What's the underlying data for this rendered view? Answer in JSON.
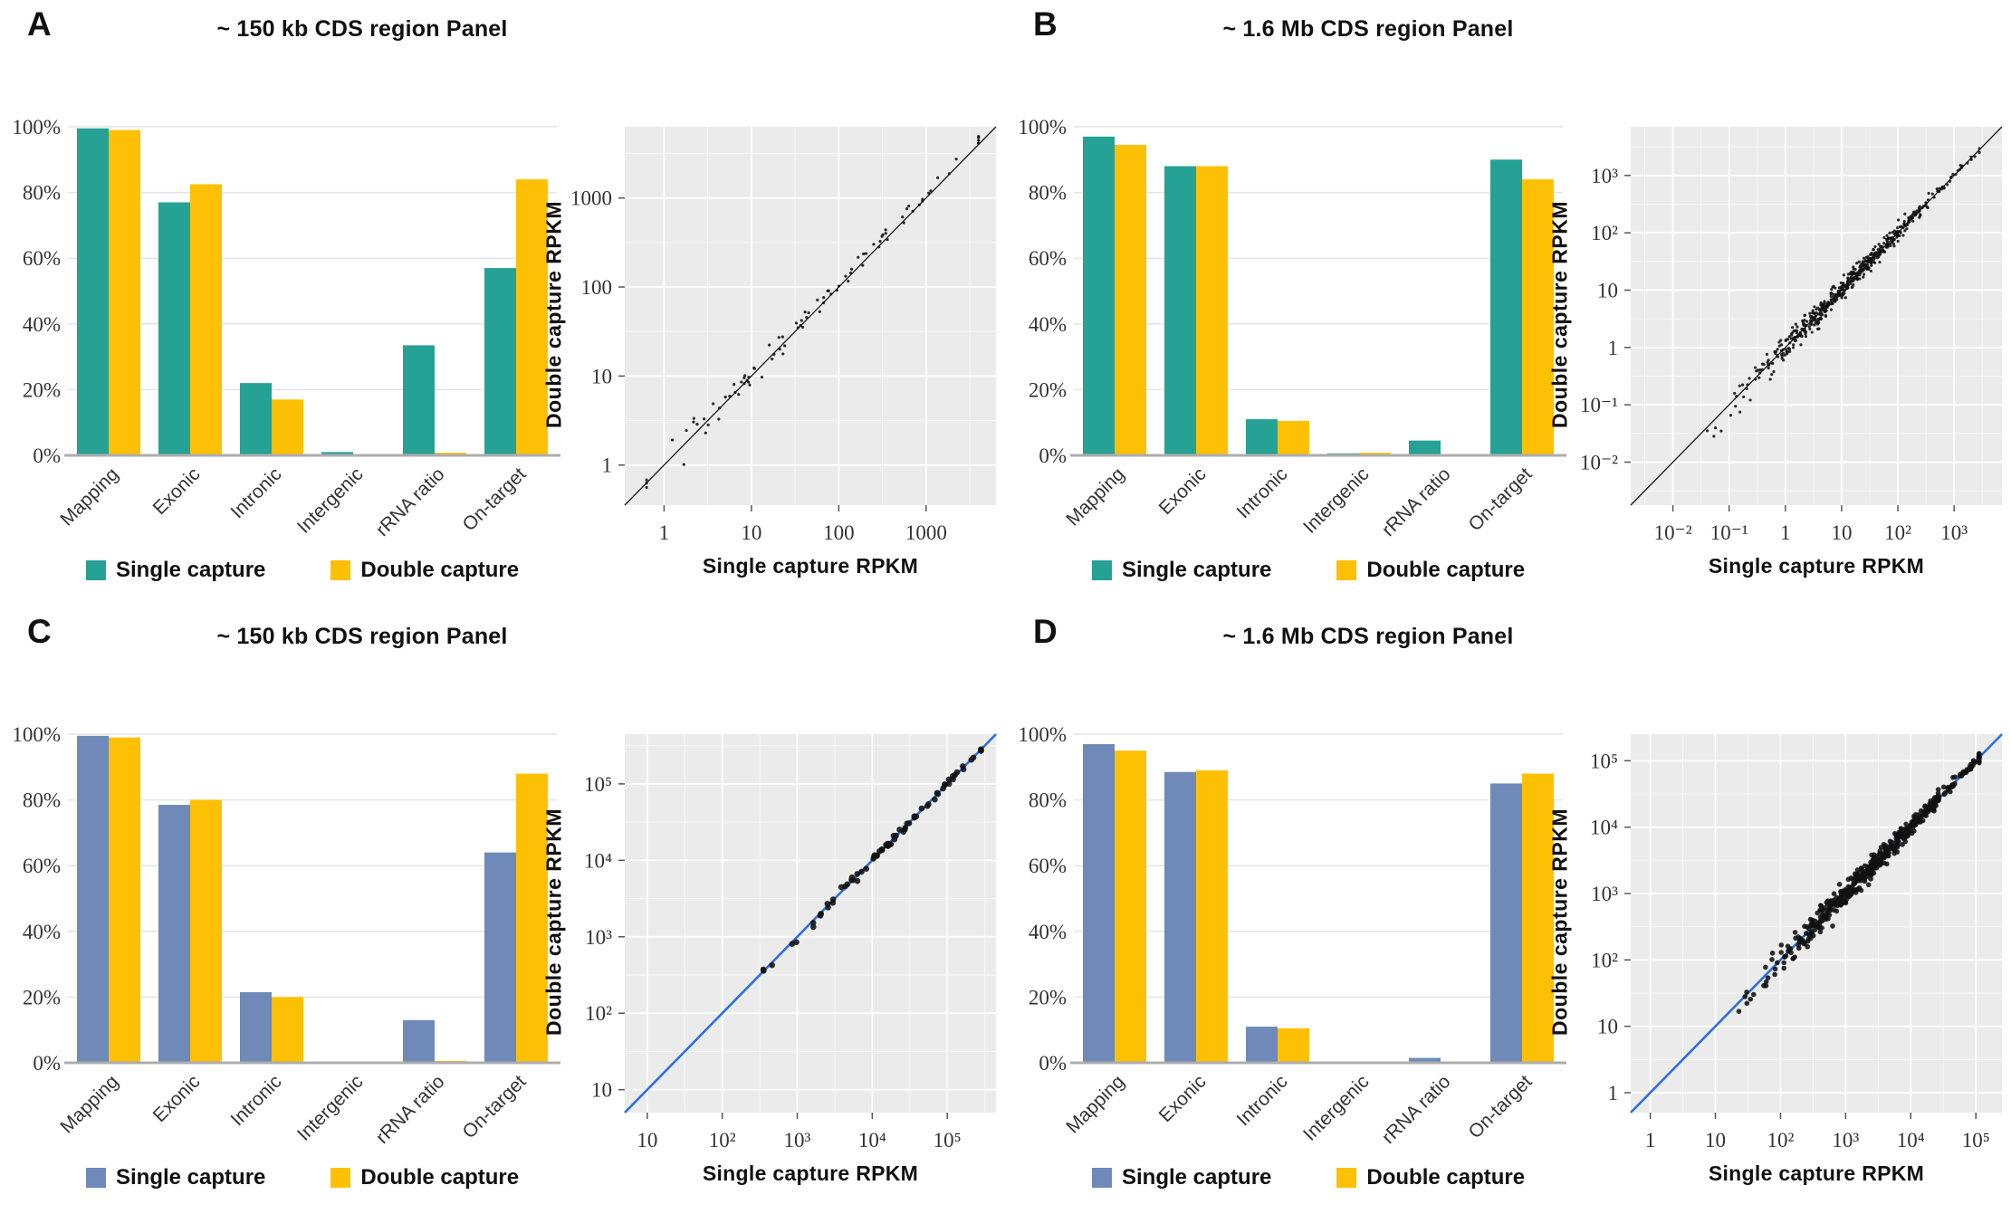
{
  "background": "#ffffff",
  "chart_data": [
    {
      "panel": "A",
      "title": "~ 150 kb CDS region Panel",
      "bar": {
        "type": "bar",
        "categories": [
          "Mapping",
          "Exonic",
          "Intronic",
          "Intergenic",
          "rRNA ratio",
          "On-target"
        ],
        "y_ticks": [
          "100%",
          "80%",
          "60%",
          "40%",
          "20%",
          "0%"
        ],
        "ylim": [
          0,
          100
        ],
        "grid": true,
        "series": [
          {
            "name": "Single capture",
            "color": "#26a196",
            "values": [
              99.5,
              77,
              22,
              1,
              33.5,
              57
            ]
          },
          {
            "name": "Double capture",
            "color": "#fdc005",
            "values": [
              99,
              82.5,
              17,
              0.4,
              0.8,
              84
            ]
          }
        ]
      },
      "scatter": {
        "type": "scatter",
        "xlabel": "Single capture RPKM",
        "ylabel": "Double capture RPKM",
        "x_ticks": [
          "1",
          "10",
          "100",
          "1000"
        ],
        "x_ticks_log": [
          0,
          1,
          2,
          3
        ],
        "y_ticks": [
          "1",
          "10",
          "100",
          "1000"
        ],
        "y_ticks_log": [
          0,
          1,
          2,
          3
        ],
        "axis_range_log": [
          -0.45,
          3.8
        ],
        "grid": true,
        "identity_line": {
          "color": "#1a1a1a",
          "width": 1.3
        },
        "points": {
          "n": 90,
          "seed": 11,
          "mu": 1.7,
          "sigma": 1.05,
          "lo": -0.2,
          "hi": 3.6,
          "sd0": 0.035,
          "sd1": 0.05,
          "bias": 0.05,
          "radius": 1.6,
          "color": "#111111"
        }
      },
      "legend": [
        {
          "label": "Single capture",
          "color": "#26a196"
        },
        {
          "label": "Double capture",
          "color": "#fdc005"
        }
      ]
    },
    {
      "panel": "B",
      "title": "~ 1.6 Mb CDS region Panel",
      "bar": {
        "type": "bar",
        "categories": [
          "Mapping",
          "Exonic",
          "Intronic",
          "Intergenic",
          "rRNA ratio",
          "On-target"
        ],
        "y_ticks": [
          "100%",
          "80%",
          "60%",
          "40%",
          "20%",
          "0%"
        ],
        "ylim": [
          0,
          100
        ],
        "grid": true,
        "series": [
          {
            "name": "Single capture",
            "color": "#26a196",
            "values": [
              97,
              88,
              11,
              0.6,
              4.5,
              90
            ]
          },
          {
            "name": "Double capture",
            "color": "#fdc005",
            "values": [
              94.5,
              88,
              10.5,
              0.8,
              0.4,
              84
            ]
          }
        ]
      },
      "scatter": {
        "type": "scatter",
        "xlabel": "Single capture RPKM",
        "ylabel": "Double capture RPKM",
        "x_ticks": [
          "10⁻²",
          "10⁻¹",
          "1",
          "10",
          "10²",
          "10³"
        ],
        "x_ticks_log": [
          -2,
          -1,
          0,
          1,
          2,
          3
        ],
        "y_ticks": [
          "10⁻²",
          "10⁻¹",
          "1",
          "10",
          "10²",
          "10³"
        ],
        "y_ticks_log": [
          -2,
          -1,
          0,
          1,
          2,
          3
        ],
        "axis_range_log": [
          -2.75,
          3.85
        ],
        "grid": true,
        "identity_line": {
          "color": "#1a1a1a",
          "width": 1.3
        },
        "points": {
          "n": 540,
          "seed": 23,
          "mu": 1.05,
          "sigma": 0.85,
          "lo": -2.35,
          "hi": 3.45,
          "sd0": 0.03,
          "sd1": 0.14,
          "bias": 0,
          "radius": 1.6,
          "color": "#111111"
        }
      },
      "legend": [
        {
          "label": "Single capture",
          "color": "#26a196"
        },
        {
          "label": "Double capture",
          "color": "#fdc005"
        }
      ]
    },
    {
      "panel": "C",
      "title": "~ 150 kb CDS region Panel",
      "bar": {
        "type": "bar",
        "categories": [
          "Mapping",
          "Exonic",
          "Intronic",
          "Intergenic",
          "rRNA ratio",
          "On-target"
        ],
        "y_ticks": [
          "100%",
          "80%",
          "60%",
          "40%",
          "20%",
          "0%"
        ],
        "ylim": [
          0,
          100
        ],
        "grid": true,
        "series": [
          {
            "name": "Single capture",
            "color": "#6f8ab9",
            "values": [
              99.5,
              78.5,
              21.5,
              0.3,
              13,
              64
            ]
          },
          {
            "name": "Double capture",
            "color": "#fdc005",
            "values": [
              99,
              80,
              20,
              0.2,
              0.6,
              88
            ]
          }
        ]
      },
      "scatter": {
        "type": "scatter",
        "xlabel": "Single capture RPKM",
        "ylabel": "Double capture RPKM",
        "x_ticks": [
          "10",
          "10²",
          "10³",
          "10⁴",
          "10⁵"
        ],
        "x_ticks_log": [
          1,
          2,
          3,
          4,
          5
        ],
        "y_ticks": [
          "10",
          "10²",
          "10³",
          "10⁴",
          "10⁵"
        ],
        "y_ticks_log": [
          1,
          2,
          3,
          4,
          5
        ],
        "axis_range_log": [
          0.7,
          5.65
        ],
        "grid": true,
        "identity_line": {
          "color": "#2b6fdf",
          "width": 2.6
        },
        "points": {
          "n": 75,
          "seed": 5,
          "mu": 4.15,
          "sigma": 0.8,
          "lo": 0.95,
          "hi": 5.45,
          "sd0": 0.02,
          "sd1": 0.04,
          "bias": 0,
          "radius": 3.3,
          "color": "#111111"
        }
      },
      "legend": [
        {
          "label": "Single capture",
          "color": "#6f8ab9"
        },
        {
          "label": "Double capture",
          "color": "#fdc005"
        }
      ]
    },
    {
      "panel": "D",
      "title": "~ 1.6 Mb CDS region Panel",
      "bar": {
        "type": "bar",
        "categories": [
          "Mapping",
          "Exonic",
          "Intronic",
          "Intergenic",
          "rRNA ratio",
          "On-target"
        ],
        "y_ticks": [
          "100%",
          "80%",
          "60%",
          "40%",
          "20%",
          "0%"
        ],
        "ylim": [
          0,
          100
        ],
        "grid": true,
        "series": [
          {
            "name": "Single capture",
            "color": "#6f8ab9",
            "values": [
              97,
              88.5,
              11,
              0.4,
              1.5,
              85
            ]
          },
          {
            "name": "Double capture",
            "color": "#fdc005",
            "values": [
              95,
              89,
              10.5,
              0.3,
              0.3,
              88
            ]
          }
        ]
      },
      "scatter": {
        "type": "scatter",
        "xlabel": "Single capture RPKM",
        "ylabel": "Double capture RPKM",
        "x_ticks": [
          "1",
          "10",
          "10²",
          "10³",
          "10⁴",
          "10⁵"
        ],
        "x_ticks_log": [
          0,
          1,
          2,
          3,
          4,
          5
        ],
        "y_ticks": [
          "1",
          "10",
          "10²",
          "10³",
          "10⁴",
          "10⁵"
        ],
        "y_ticks_log": [
          0,
          1,
          2,
          3,
          4,
          5
        ],
        "axis_range_log": [
          -0.3,
          5.4
        ],
        "grid": true,
        "identity_line": {
          "color": "#2b6fdf",
          "width": 2.6
        },
        "points": {
          "n": 480,
          "seed": 42,
          "mu": 3.4,
          "sigma": 0.9,
          "lo": 0.0,
          "hi": 5.05,
          "sd0": 0.035,
          "sd1": 0.12,
          "bias": 0,
          "radius": 2.8,
          "color": "#111111"
        }
      },
      "legend": [
        {
          "label": "Single capture",
          "color": "#6f8ab9"
        },
        {
          "label": "Double capture",
          "color": "#fdc005"
        }
      ]
    }
  ],
  "style": {
    "scatter_bg": "#ebebeb",
    "scatter_grid": "#ffffff",
    "bar_grid": "#e4e4e4",
    "bar_baseline": "#adadad"
  }
}
